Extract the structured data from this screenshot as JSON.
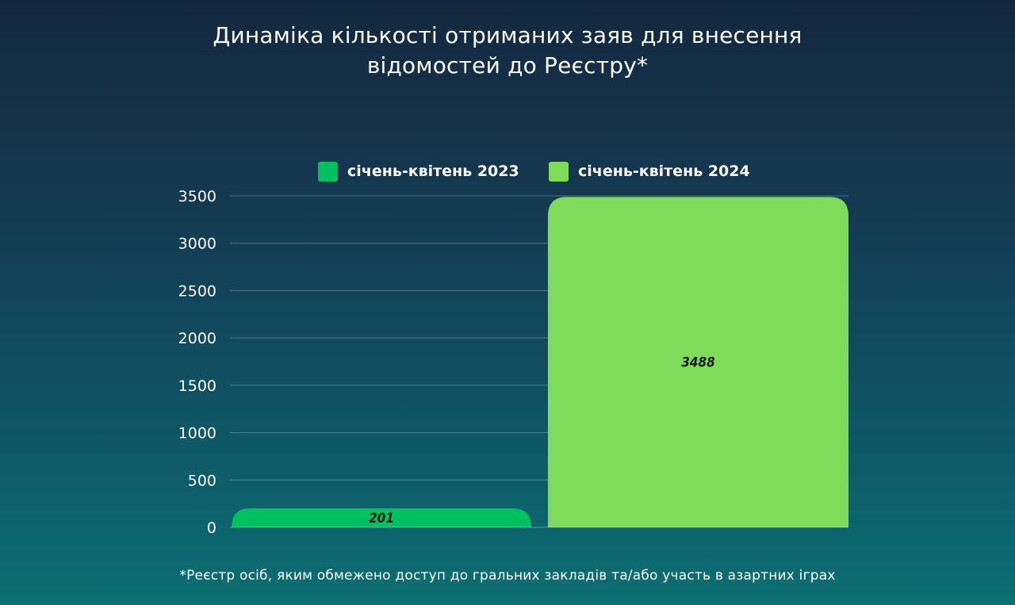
{
  "chart_data": {
    "type": "bar",
    "title": "Динаміка кількості отриманих заяв для внесення відомостей до Реєстру*",
    "title_lines": [
      "Динаміка кількості отриманих заяв для внесення",
      "відомостей до Реєстру*"
    ],
    "series": [
      {
        "name": "січень-квітень 2023",
        "value": 201,
        "color": "#00c160"
      },
      {
        "name": "січень-квітень 2024",
        "value": 3488,
        "color": "#7fdc5a"
      }
    ],
    "y_ticks": [
      0,
      500,
      1000,
      1500,
      2000,
      2500,
      3000,
      3500
    ],
    "ylim": [
      0,
      3500
    ],
    "grid": true,
    "legend_position": "top"
  },
  "footnote": "*Реєстр осіб, яким обмежено доступ до гральних закладів та/або участь в азартних іграх"
}
